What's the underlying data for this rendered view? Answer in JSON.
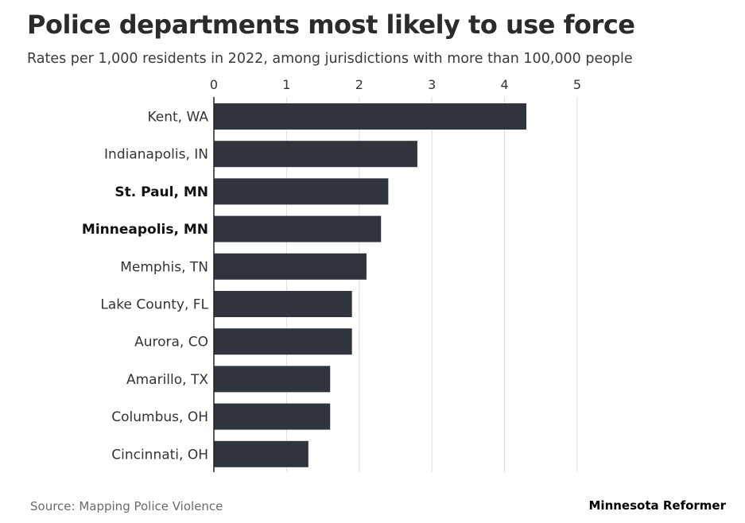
{
  "header": {
    "title": "Police departments most likely to use force",
    "subtitle": "Rates per 1,000 residents in 2022, among jurisdictions with more than 100,000 people"
  },
  "footer": {
    "source": "Source: Mapping Police Violence",
    "brand": "Minnesota Reformer"
  },
  "colors": {
    "bar": "#2f343d",
    "grid": "#dcdcdc",
    "axis": "#222222"
  },
  "chart_data": {
    "type": "bar",
    "orientation": "horizontal",
    "title": "Police departments most likely to use force",
    "subtitle": "Rates per 1,000 residents in 2022, among jurisdictions with more than 100,000 people",
    "xlabel": "",
    "ylabel": "",
    "xlim": [
      0,
      5
    ],
    "ticks": [
      0,
      1,
      2,
      3,
      4,
      5
    ],
    "tick_labels": [
      "0",
      "1",
      "2",
      "3",
      "4",
      "5"
    ],
    "grid": true,
    "categories": [
      "Kent, WA",
      "Indianapolis, IN",
      "St. Paul, MN",
      "Minneapolis, MN",
      "Memphis, TN",
      "Lake County, FL",
      "Aurora, CO",
      "Amarillo, TX",
      "Columbus, OH",
      "Cincinnati, OH"
    ],
    "highlighted": [
      "St. Paul, MN",
      "Minneapolis, MN"
    ],
    "values": [
      4.3,
      2.8,
      2.4,
      2.3,
      2.1,
      1.9,
      1.9,
      1.6,
      1.6,
      1.3
    ]
  }
}
